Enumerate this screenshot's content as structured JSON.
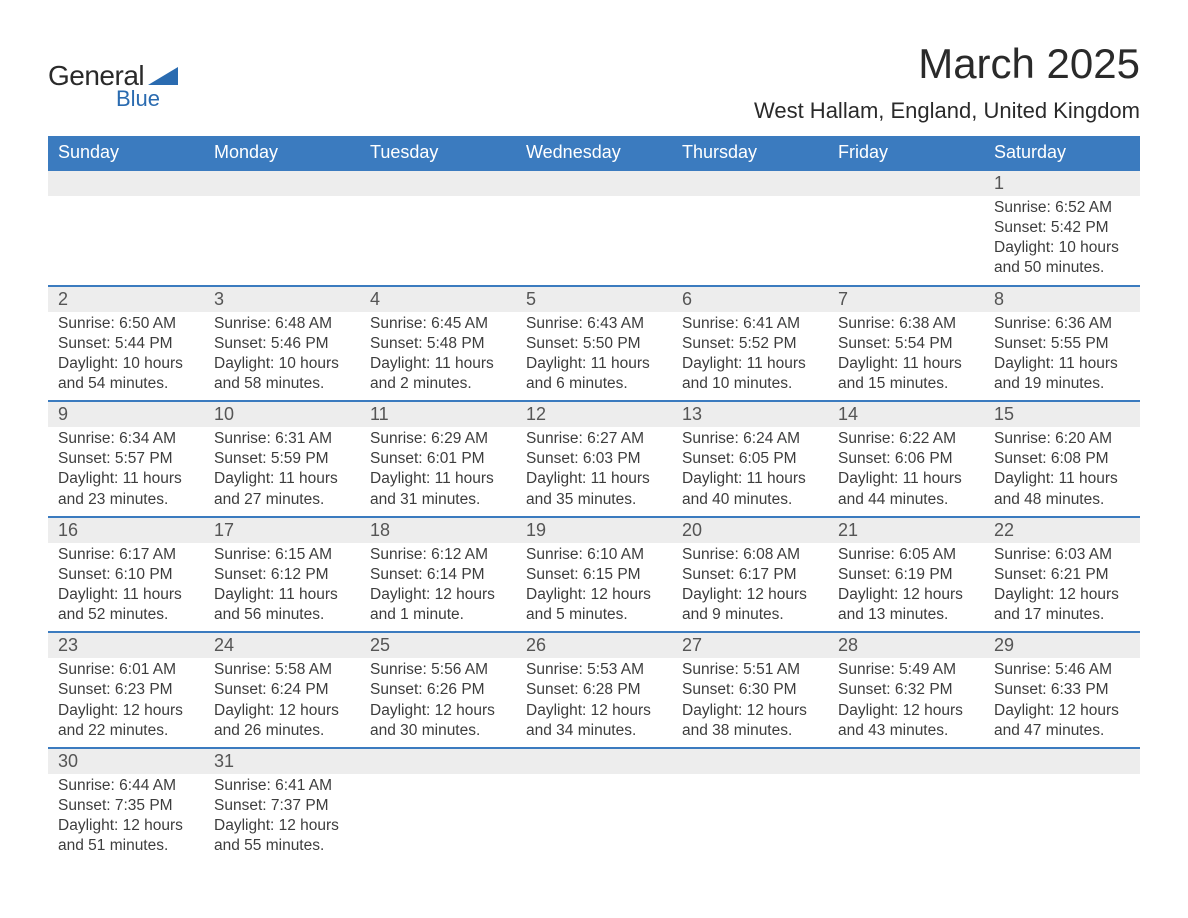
{
  "logo": {
    "text1": "General",
    "text2": "Blue",
    "color1": "#2a2a2a",
    "color2": "#2a6bb0"
  },
  "title": "March 2025",
  "location": "West Hallam, England, United Kingdom",
  "header_bg": "#3b7bbf",
  "header_fg": "#ffffff",
  "row_border": "#3b7bbf",
  "daynum_bg": "#ededed",
  "text_color": "#3d3d3d",
  "font_size_body": 15.5,
  "font_size_title": 42,
  "font_size_location": 22,
  "font_size_header": 18,
  "font_size_daynum": 18,
  "weekdays": [
    "Sunday",
    "Monday",
    "Tuesday",
    "Wednesday",
    "Thursday",
    "Friday",
    "Saturday"
  ],
  "weeks": [
    [
      null,
      null,
      null,
      null,
      null,
      null,
      {
        "n": "1",
        "sunrise": "Sunrise: 6:52 AM",
        "sunset": "Sunset: 5:42 PM",
        "daylight": "Daylight: 10 hours and 50 minutes."
      }
    ],
    [
      {
        "n": "2",
        "sunrise": "Sunrise: 6:50 AM",
        "sunset": "Sunset: 5:44 PM",
        "daylight": "Daylight: 10 hours and 54 minutes."
      },
      {
        "n": "3",
        "sunrise": "Sunrise: 6:48 AM",
        "sunset": "Sunset: 5:46 PM",
        "daylight": "Daylight: 10 hours and 58 minutes."
      },
      {
        "n": "4",
        "sunrise": "Sunrise: 6:45 AM",
        "sunset": "Sunset: 5:48 PM",
        "daylight": "Daylight: 11 hours and 2 minutes."
      },
      {
        "n": "5",
        "sunrise": "Sunrise: 6:43 AM",
        "sunset": "Sunset: 5:50 PM",
        "daylight": "Daylight: 11 hours and 6 minutes."
      },
      {
        "n": "6",
        "sunrise": "Sunrise: 6:41 AM",
        "sunset": "Sunset: 5:52 PM",
        "daylight": "Daylight: 11 hours and 10 minutes."
      },
      {
        "n": "7",
        "sunrise": "Sunrise: 6:38 AM",
        "sunset": "Sunset: 5:54 PM",
        "daylight": "Daylight: 11 hours and 15 minutes."
      },
      {
        "n": "8",
        "sunrise": "Sunrise: 6:36 AM",
        "sunset": "Sunset: 5:55 PM",
        "daylight": "Daylight: 11 hours and 19 minutes."
      }
    ],
    [
      {
        "n": "9",
        "sunrise": "Sunrise: 6:34 AM",
        "sunset": "Sunset: 5:57 PM",
        "daylight": "Daylight: 11 hours and 23 minutes."
      },
      {
        "n": "10",
        "sunrise": "Sunrise: 6:31 AM",
        "sunset": "Sunset: 5:59 PM",
        "daylight": "Daylight: 11 hours and 27 minutes."
      },
      {
        "n": "11",
        "sunrise": "Sunrise: 6:29 AM",
        "sunset": "Sunset: 6:01 PM",
        "daylight": "Daylight: 11 hours and 31 minutes."
      },
      {
        "n": "12",
        "sunrise": "Sunrise: 6:27 AM",
        "sunset": "Sunset: 6:03 PM",
        "daylight": "Daylight: 11 hours and 35 minutes."
      },
      {
        "n": "13",
        "sunrise": "Sunrise: 6:24 AM",
        "sunset": "Sunset: 6:05 PM",
        "daylight": "Daylight: 11 hours and 40 minutes."
      },
      {
        "n": "14",
        "sunrise": "Sunrise: 6:22 AM",
        "sunset": "Sunset: 6:06 PM",
        "daylight": "Daylight: 11 hours and 44 minutes."
      },
      {
        "n": "15",
        "sunrise": "Sunrise: 6:20 AM",
        "sunset": "Sunset: 6:08 PM",
        "daylight": "Daylight: 11 hours and 48 minutes."
      }
    ],
    [
      {
        "n": "16",
        "sunrise": "Sunrise: 6:17 AM",
        "sunset": "Sunset: 6:10 PM",
        "daylight": "Daylight: 11 hours and 52 minutes."
      },
      {
        "n": "17",
        "sunrise": "Sunrise: 6:15 AM",
        "sunset": "Sunset: 6:12 PM",
        "daylight": "Daylight: 11 hours and 56 minutes."
      },
      {
        "n": "18",
        "sunrise": "Sunrise: 6:12 AM",
        "sunset": "Sunset: 6:14 PM",
        "daylight": "Daylight: 12 hours and 1 minute."
      },
      {
        "n": "19",
        "sunrise": "Sunrise: 6:10 AM",
        "sunset": "Sunset: 6:15 PM",
        "daylight": "Daylight: 12 hours and 5 minutes."
      },
      {
        "n": "20",
        "sunrise": "Sunrise: 6:08 AM",
        "sunset": "Sunset: 6:17 PM",
        "daylight": "Daylight: 12 hours and 9 minutes."
      },
      {
        "n": "21",
        "sunrise": "Sunrise: 6:05 AM",
        "sunset": "Sunset: 6:19 PM",
        "daylight": "Daylight: 12 hours and 13 minutes."
      },
      {
        "n": "22",
        "sunrise": "Sunrise: 6:03 AM",
        "sunset": "Sunset: 6:21 PM",
        "daylight": "Daylight: 12 hours and 17 minutes."
      }
    ],
    [
      {
        "n": "23",
        "sunrise": "Sunrise: 6:01 AM",
        "sunset": "Sunset: 6:23 PM",
        "daylight": "Daylight: 12 hours and 22 minutes."
      },
      {
        "n": "24",
        "sunrise": "Sunrise: 5:58 AM",
        "sunset": "Sunset: 6:24 PM",
        "daylight": "Daylight: 12 hours and 26 minutes."
      },
      {
        "n": "25",
        "sunrise": "Sunrise: 5:56 AM",
        "sunset": "Sunset: 6:26 PM",
        "daylight": "Daylight: 12 hours and 30 minutes."
      },
      {
        "n": "26",
        "sunrise": "Sunrise: 5:53 AM",
        "sunset": "Sunset: 6:28 PM",
        "daylight": "Daylight: 12 hours and 34 minutes."
      },
      {
        "n": "27",
        "sunrise": "Sunrise: 5:51 AM",
        "sunset": "Sunset: 6:30 PM",
        "daylight": "Daylight: 12 hours and 38 minutes."
      },
      {
        "n": "28",
        "sunrise": "Sunrise: 5:49 AM",
        "sunset": "Sunset: 6:32 PM",
        "daylight": "Daylight: 12 hours and 43 minutes."
      },
      {
        "n": "29",
        "sunrise": "Sunrise: 5:46 AM",
        "sunset": "Sunset: 6:33 PM",
        "daylight": "Daylight: 12 hours and 47 minutes."
      }
    ],
    [
      {
        "n": "30",
        "sunrise": "Sunrise: 6:44 AM",
        "sunset": "Sunset: 7:35 PM",
        "daylight": "Daylight: 12 hours and 51 minutes."
      },
      {
        "n": "31",
        "sunrise": "Sunrise: 6:41 AM",
        "sunset": "Sunset: 7:37 PM",
        "daylight": "Daylight: 12 hours and 55 minutes."
      },
      null,
      null,
      null,
      null,
      null
    ]
  ]
}
